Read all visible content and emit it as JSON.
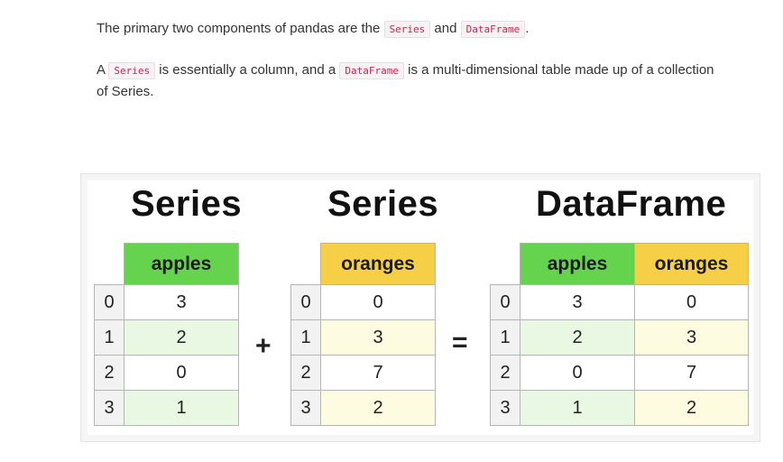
{
  "intro": {
    "p1_before": "The primary two components of pandas are the ",
    "p1_code1": "Series",
    "p1_mid": " and ",
    "p1_code2": "DataFrame",
    "p1_after": ".",
    "p2_before": "A ",
    "p2_code1": "Series",
    "p2_mid": " is essentially a column, and a ",
    "p2_code2": "DataFrame",
    "p2_after": " is a multi-dimensional table made up of a collection of Series."
  },
  "figure": {
    "series1": {
      "title": "Series",
      "header": "apples",
      "index": [
        "0",
        "1",
        "2",
        "3"
      ],
      "values": [
        "3",
        "2",
        "0",
        "1"
      ]
    },
    "plus": "+",
    "series2": {
      "title": "Series",
      "header": "oranges",
      "index": [
        "0",
        "1",
        "2",
        "3"
      ],
      "values": [
        "0",
        "3",
        "7",
        "2"
      ]
    },
    "equals": "=",
    "dataframe": {
      "title": "DataFrame",
      "headers": [
        "apples",
        "oranges"
      ],
      "index": [
        "0",
        "1",
        "2",
        "3"
      ],
      "apples": [
        "3",
        "2",
        "0",
        "1"
      ],
      "oranges": [
        "0",
        "3",
        "7",
        "2"
      ]
    },
    "colors": {
      "apples_header": "#66d34e",
      "oranges_header": "#f7cf46",
      "apples_row_tint": "#e8f8e2",
      "oranges_row_tint": "#fdfbe0"
    }
  }
}
